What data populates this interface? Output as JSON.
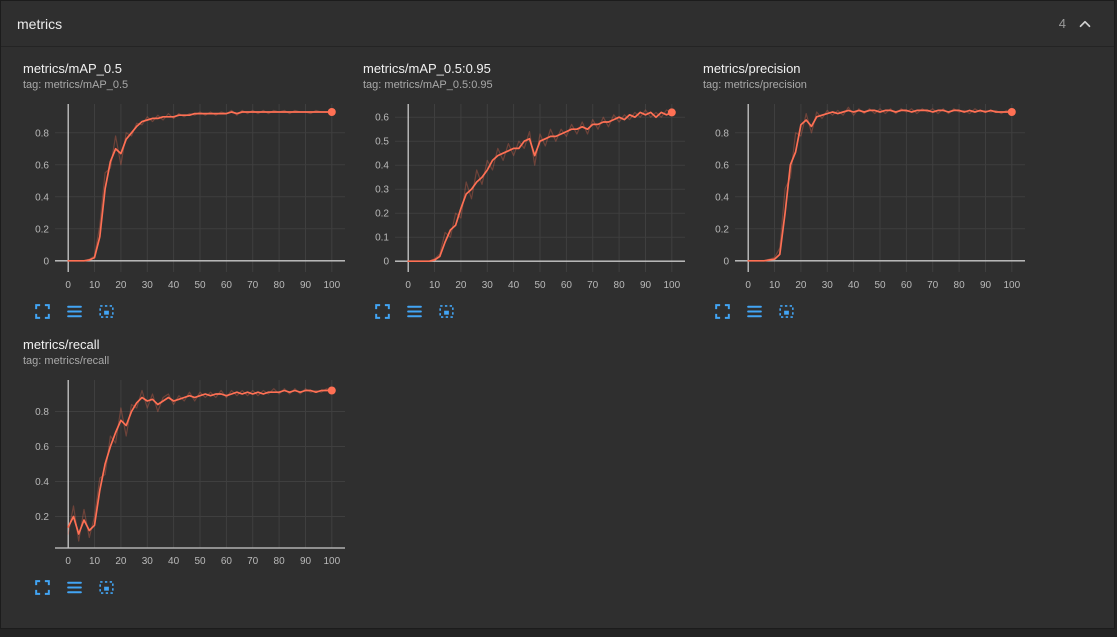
{
  "header": {
    "title": "metrics",
    "count": "4"
  },
  "icons": {
    "header_collapse": "chevron-up-icon",
    "card_toolbar": [
      "fullscreen-icon",
      "log-scale-icon",
      "fit-domain-icon"
    ]
  },
  "colors": {
    "accent_line": "#ff7054",
    "icon_blue": "#42a5f5",
    "grid": "#3f3f3f",
    "axis": "#c9c9c9",
    "tick_text": "#b9b9b9"
  },
  "x": [
    0,
    2,
    4,
    6,
    8,
    10,
    12,
    14,
    16,
    18,
    20,
    22,
    24,
    26,
    28,
    30,
    32,
    34,
    36,
    38,
    40,
    42,
    44,
    46,
    48,
    50,
    52,
    54,
    56,
    58,
    60,
    62,
    64,
    66,
    68,
    70,
    72,
    74,
    76,
    78,
    80,
    82,
    84,
    86,
    88,
    90,
    92,
    94,
    96,
    98,
    100
  ],
  "chart_data": [
    {
      "type": "line",
      "title": "metrics/mAP_0.5",
      "tag": "tag: metrics/mAP_0.5",
      "xlabel": "",
      "ylabel": "",
      "xlim": [
        -5,
        105
      ],
      "ylim": [
        -0.07,
        0.98
      ],
      "xticks": [
        0,
        10,
        20,
        30,
        40,
        50,
        60,
        70,
        80,
        90,
        100
      ],
      "yticks": [
        0,
        0.2,
        0.4,
        0.6,
        0.8
      ],
      "series": [
        {
          "name": "raw",
          "values": [
            0,
            0,
            0,
            0,
            0.01,
            0.03,
            0.22,
            0.55,
            0.58,
            0.78,
            0.6,
            0.8,
            0.78,
            0.86,
            0.85,
            0.9,
            0.87,
            0.91,
            0.88,
            0.92,
            0.89,
            0.92,
            0.9,
            0.92,
            0.91,
            0.93,
            0.91,
            0.93,
            0.91,
            0.93,
            0.92,
            0.94,
            0.91,
            0.94,
            0.92,
            0.94,
            0.92,
            0.94,
            0.92,
            0.94,
            0.93,
            0.94,
            0.92,
            0.94,
            0.93,
            0.93,
            0.92,
            0.94,
            0.93,
            0.93,
            0.93
          ]
        },
        {
          "name": "smoothed",
          "values": [
            0,
            0,
            0,
            0,
            0.005,
            0.02,
            0.15,
            0.45,
            0.62,
            0.7,
            0.67,
            0.76,
            0.8,
            0.84,
            0.87,
            0.88,
            0.89,
            0.89,
            0.9,
            0.9,
            0.9,
            0.91,
            0.91,
            0.91,
            0.92,
            0.92,
            0.92,
            0.92,
            0.92,
            0.92,
            0.92,
            0.93,
            0.92,
            0.93,
            0.93,
            0.93,
            0.93,
            0.93,
            0.93,
            0.93,
            0.93,
            0.93,
            0.93,
            0.93,
            0.93,
            0.93,
            0.93,
            0.93,
            0.93,
            0.93,
            0.93
          ]
        }
      ]
    },
    {
      "type": "line",
      "title": "metrics/mAP_0.5:0.95",
      "tag": "tag: metrics/mAP_0.5:0.95",
      "xlabel": "",
      "ylabel": "",
      "xlim": [
        -5,
        105
      ],
      "ylim": [
        -0.045,
        0.655
      ],
      "xticks": [
        0,
        10,
        20,
        30,
        40,
        50,
        60,
        70,
        80,
        90,
        100
      ],
      "yticks": [
        0,
        0.1,
        0.2,
        0.3,
        0.4,
        0.5,
        0.6
      ],
      "series": [
        {
          "name": "raw",
          "values": [
            0,
            0,
            0,
            0,
            0,
            0.01,
            0.03,
            0.12,
            0.1,
            0.2,
            0.18,
            0.33,
            0.26,
            0.38,
            0.32,
            0.42,
            0.38,
            0.47,
            0.42,
            0.49,
            0.44,
            0.5,
            0.47,
            0.54,
            0.4,
            0.53,
            0.48,
            0.55,
            0.5,
            0.55,
            0.52,
            0.57,
            0.53,
            0.58,
            0.53,
            0.59,
            0.55,
            0.6,
            0.56,
            0.61,
            0.58,
            0.61,
            0.59,
            0.62,
            0.6,
            0.63,
            0.6,
            0.62,
            0.6,
            0.63,
            0.62
          ]
        },
        {
          "name": "smoothed",
          "values": [
            0,
            0,
            0,
            0,
            0,
            0.005,
            0.02,
            0.08,
            0.13,
            0.15,
            0.22,
            0.28,
            0.3,
            0.33,
            0.35,
            0.38,
            0.42,
            0.44,
            0.45,
            0.46,
            0.47,
            0.47,
            0.5,
            0.51,
            0.44,
            0.5,
            0.51,
            0.52,
            0.52,
            0.53,
            0.54,
            0.55,
            0.55,
            0.56,
            0.55,
            0.57,
            0.57,
            0.58,
            0.58,
            0.59,
            0.6,
            0.59,
            0.61,
            0.6,
            0.62,
            0.61,
            0.62,
            0.6,
            0.62,
            0.61,
            0.62
          ]
        }
      ]
    },
    {
      "type": "line",
      "title": "metrics/precision",
      "tag": "tag: metrics/precision",
      "xlabel": "",
      "ylabel": "",
      "xlim": [
        -5,
        105
      ],
      "ylim": [
        -0.07,
        0.98
      ],
      "xticks": [
        0,
        10,
        20,
        30,
        40,
        50,
        60,
        70,
        80,
        90,
        100
      ],
      "yticks": [
        0,
        0.2,
        0.4,
        0.6,
        0.8
      ],
      "series": [
        {
          "name": "raw",
          "values": [
            0,
            0,
            0,
            0,
            0.01,
            0.02,
            0.08,
            0.45,
            0.52,
            0.8,
            0.78,
            0.92,
            0.8,
            0.93,
            0.89,
            0.94,
            0.91,
            0.94,
            0.91,
            0.96,
            0.91,
            0.95,
            0.92,
            0.95,
            0.92,
            0.95,
            0.92,
            0.95,
            0.92,
            0.95,
            0.93,
            0.95,
            0.92,
            0.95,
            0.93,
            0.95,
            0.92,
            0.95,
            0.92,
            0.95,
            0.93,
            0.94,
            0.92,
            0.95,
            0.93,
            0.94,
            0.93,
            0.94,
            0.92,
            0.94,
            0.93
          ]
        },
        {
          "name": "smoothed",
          "values": [
            0,
            0,
            0,
            0,
            0.005,
            0.01,
            0.04,
            0.3,
            0.6,
            0.68,
            0.85,
            0.88,
            0.84,
            0.9,
            0.91,
            0.92,
            0.93,
            0.92,
            0.93,
            0.94,
            0.93,
            0.94,
            0.93,
            0.94,
            0.94,
            0.93,
            0.94,
            0.94,
            0.93,
            0.94,
            0.94,
            0.93,
            0.94,
            0.94,
            0.94,
            0.93,
            0.94,
            0.94,
            0.93,
            0.94,
            0.94,
            0.93,
            0.94,
            0.93,
            0.94,
            0.93,
            0.94,
            0.93,
            0.93,
            0.93,
            0.93
          ]
        }
      ]
    },
    {
      "type": "line",
      "title": "metrics/recall",
      "tag": "tag: metrics/recall",
      "xlabel": "",
      "ylabel": "",
      "xlim": [
        -5,
        105
      ],
      "ylim": [
        0.02,
        0.98
      ],
      "xticks": [
        0,
        10,
        20,
        30,
        40,
        50,
        60,
        70,
        80,
        90,
        100
      ],
      "yticks": [
        0.2,
        0.4,
        0.6,
        0.8
      ],
      "series": [
        {
          "name": "raw",
          "values": [
            0.1,
            0.26,
            0.06,
            0.24,
            0.08,
            0.2,
            0.42,
            0.44,
            0.66,
            0.62,
            0.82,
            0.66,
            0.84,
            0.82,
            0.92,
            0.82,
            0.9,
            0.8,
            0.88,
            0.9,
            0.84,
            0.89,
            0.86,
            0.91,
            0.86,
            0.91,
            0.88,
            0.91,
            0.88,
            0.92,
            0.88,
            0.92,
            0.89,
            0.92,
            0.89,
            0.92,
            0.89,
            0.92,
            0.9,
            0.93,
            0.9,
            0.93,
            0.9,
            0.93,
            0.9,
            0.93,
            0.91,
            0.92,
            0.91,
            0.93,
            0.92
          ]
        },
        {
          "name": "smoothed",
          "values": [
            0.14,
            0.2,
            0.1,
            0.18,
            0.12,
            0.15,
            0.35,
            0.5,
            0.6,
            0.68,
            0.75,
            0.72,
            0.8,
            0.85,
            0.88,
            0.86,
            0.87,
            0.84,
            0.86,
            0.88,
            0.86,
            0.87,
            0.88,
            0.89,
            0.88,
            0.89,
            0.9,
            0.89,
            0.9,
            0.9,
            0.89,
            0.9,
            0.91,
            0.9,
            0.91,
            0.9,
            0.91,
            0.9,
            0.91,
            0.91,
            0.91,
            0.92,
            0.91,
            0.92,
            0.91,
            0.92,
            0.92,
            0.91,
            0.92,
            0.92,
            0.92
          ]
        }
      ]
    }
  ]
}
